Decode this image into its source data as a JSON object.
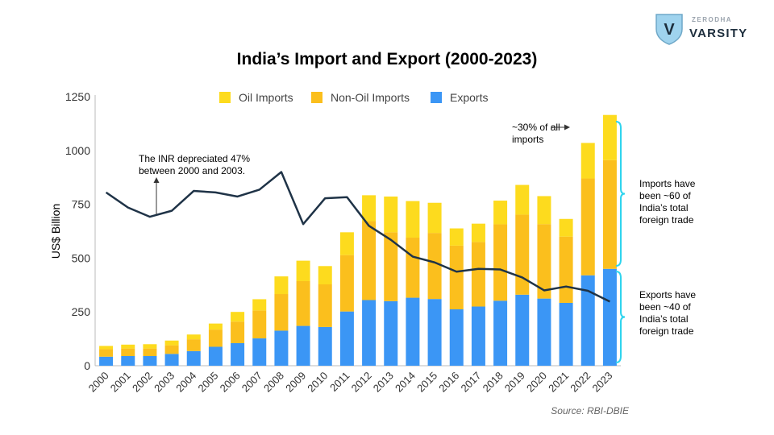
{
  "brand": {
    "sub": "ZERODHA",
    "name": "VARSITY",
    "emblem": "V"
  },
  "title": "India’s Import and Export (2000-2023)",
  "source": "Source: RBI-DBIE",
  "colors": {
    "oil": "#fddb1e",
    "nonoil": "#fbbf1d",
    "exports": "#3b96f5",
    "line": "#1f3347",
    "brace": "#2fd4ee"
  },
  "chart_data": {
    "type": "bar",
    "stacked": true,
    "categories": [
      "2000",
      "2001",
      "2002",
      "2003",
      "2004",
      "2005",
      "2006",
      "2007",
      "2008",
      "2009",
      "2010",
      "2011",
      "2012",
      "2013",
      "2014",
      "2015",
      "2016",
      "2017",
      "2018",
      "2019",
      "2020",
      "2021",
      "2022",
      "2023"
    ],
    "series": [
      {
        "name": "Exports",
        "values": [
          42,
          45,
          45,
          55,
          68,
          88,
          105,
          127,
          163,
          185,
          180,
          252,
          305,
          300,
          316,
          310,
          262,
          275,
          302,
          330,
          312,
          292,
          420,
          450
        ]
      },
      {
        "name": "Non-Oil Imports",
        "values": [
          35,
          35,
          35,
          40,
          55,
          80,
          100,
          130,
          170,
          208,
          198,
          262,
          367,
          320,
          279,
          307,
          296,
          300,
          355,
          372,
          346,
          308,
          450,
          505
        ]
      },
      {
        "name": "Oil Imports",
        "values": [
          15,
          18,
          20,
          22,
          22,
          28,
          45,
          52,
          82,
          95,
          85,
          106,
          120,
          166,
          170,
          140,
          80,
          85,
          110,
          138,
          130,
          82,
          165,
          210
        ]
      }
    ],
    "line": {
      "values": [
        805,
        735,
        692,
        720,
        812,
        805,
        786,
        818,
        900,
        658,
        778,
        783,
        650,
        585,
        507,
        480,
        437,
        450,
        447,
        410,
        350,
        368,
        348,
        298
      ]
    },
    "ylabel": "US$ Billion",
    "xlabel": "",
    "ylim": [
      0,
      1250
    ],
    "yticks": [
      "0",
      "250",
      "500",
      "750",
      "1000",
      "1250"
    ],
    "grid": false,
    "legend_position": "top",
    "legend": [
      "Oil Imports",
      "Non-Oil Imports",
      "Exports"
    ],
    "annotations": {
      "inr": [
        "The INR depreciated 47%",
        "between 2000 and 2003."
      ],
      "oil_share": [
        "~30% of all",
        "imports"
      ],
      "imports": [
        "Imports have",
        "been ~60 of",
        "India’s total",
        "foreign trade"
      ],
      "exports": [
        "Exports have",
        "been ~40 of",
        "India’s total",
        "foreign trade"
      ]
    }
  }
}
